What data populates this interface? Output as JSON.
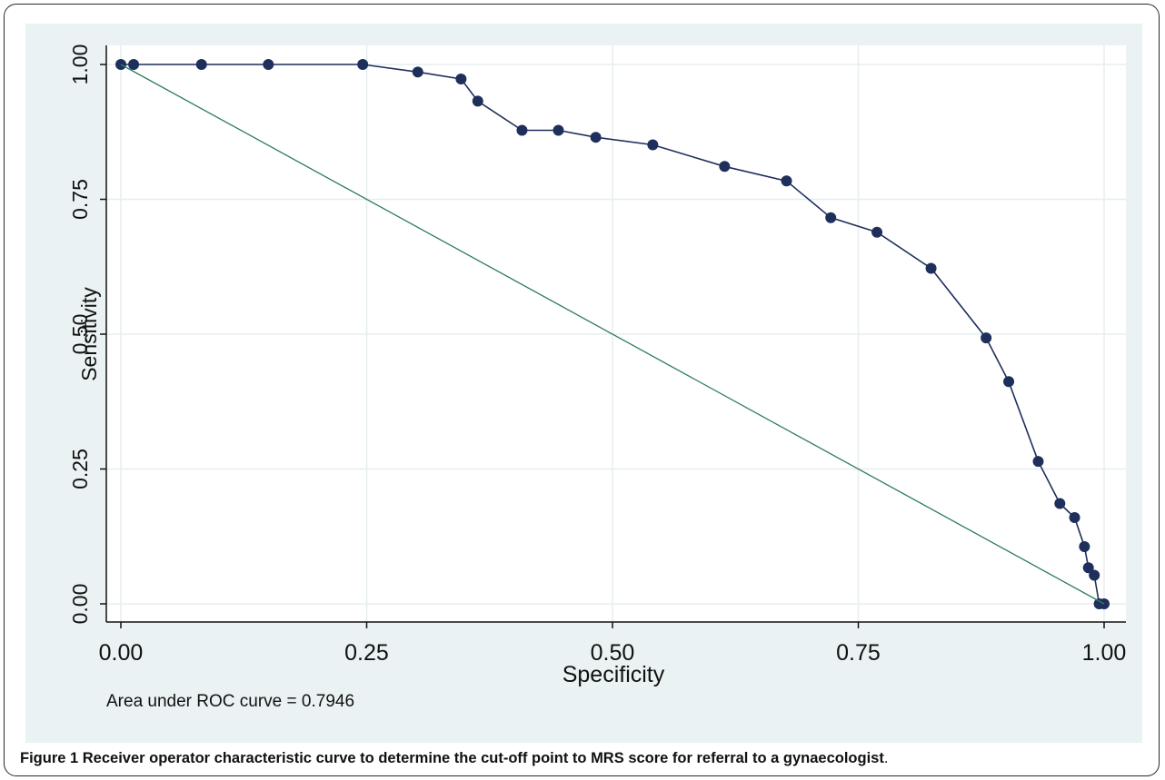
{
  "chart_data": {
    "type": "line",
    "xlabel": "Specificity",
    "ylabel": "Sensitivity",
    "xlim": [
      0,
      1
    ],
    "ylim": [
      0,
      1
    ],
    "x_ticks": [
      "0.00",
      "0.25",
      "0.50",
      "0.75",
      "1.00"
    ],
    "y_ticks": [
      "0.00",
      "0.25",
      "0.50",
      "0.75",
      "1.00"
    ],
    "grid": true,
    "annotation": "Area under ROC curve = 0.7946",
    "series": [
      {
        "color": "#1f2f5c",
        "markers": true,
        "points": [
          [
            0.0,
            1.0
          ],
          [
            0.013,
            1.0
          ],
          [
            0.082,
            1.0
          ],
          [
            0.15,
            1.0
          ],
          [
            0.246,
            1.0
          ],
          [
            0.302,
            0.986
          ],
          [
            0.346,
            0.973
          ],
          [
            0.363,
            0.932
          ],
          [
            0.408,
            0.878
          ],
          [
            0.445,
            0.878
          ],
          [
            0.483,
            0.865
          ],
          [
            0.541,
            0.851
          ],
          [
            0.614,
            0.811
          ],
          [
            0.677,
            0.784
          ],
          [
            0.722,
            0.716
          ],
          [
            0.769,
            0.689
          ],
          [
            0.824,
            0.622
          ],
          [
            0.88,
            0.493
          ],
          [
            0.903,
            0.412
          ],
          [
            0.933,
            0.264
          ],
          [
            0.955,
            0.186
          ],
          [
            0.97,
            0.16
          ],
          [
            0.98,
            0.106
          ],
          [
            0.984,
            0.067
          ],
          [
            0.99,
            0.053
          ],
          [
            0.995,
            0.0
          ],
          [
            1.0,
            0.0
          ]
        ]
      },
      {
        "color": "#2e7d5e",
        "markers": false,
        "points": [
          [
            0,
            1
          ],
          [
            1,
            0
          ]
        ]
      }
    ]
  },
  "caption": {
    "label": "Figure 1",
    "text": "Receiver operator characteristic curve to determine the cut-off point to MRS score for referral to a gynaecologist",
    "end": "."
  }
}
